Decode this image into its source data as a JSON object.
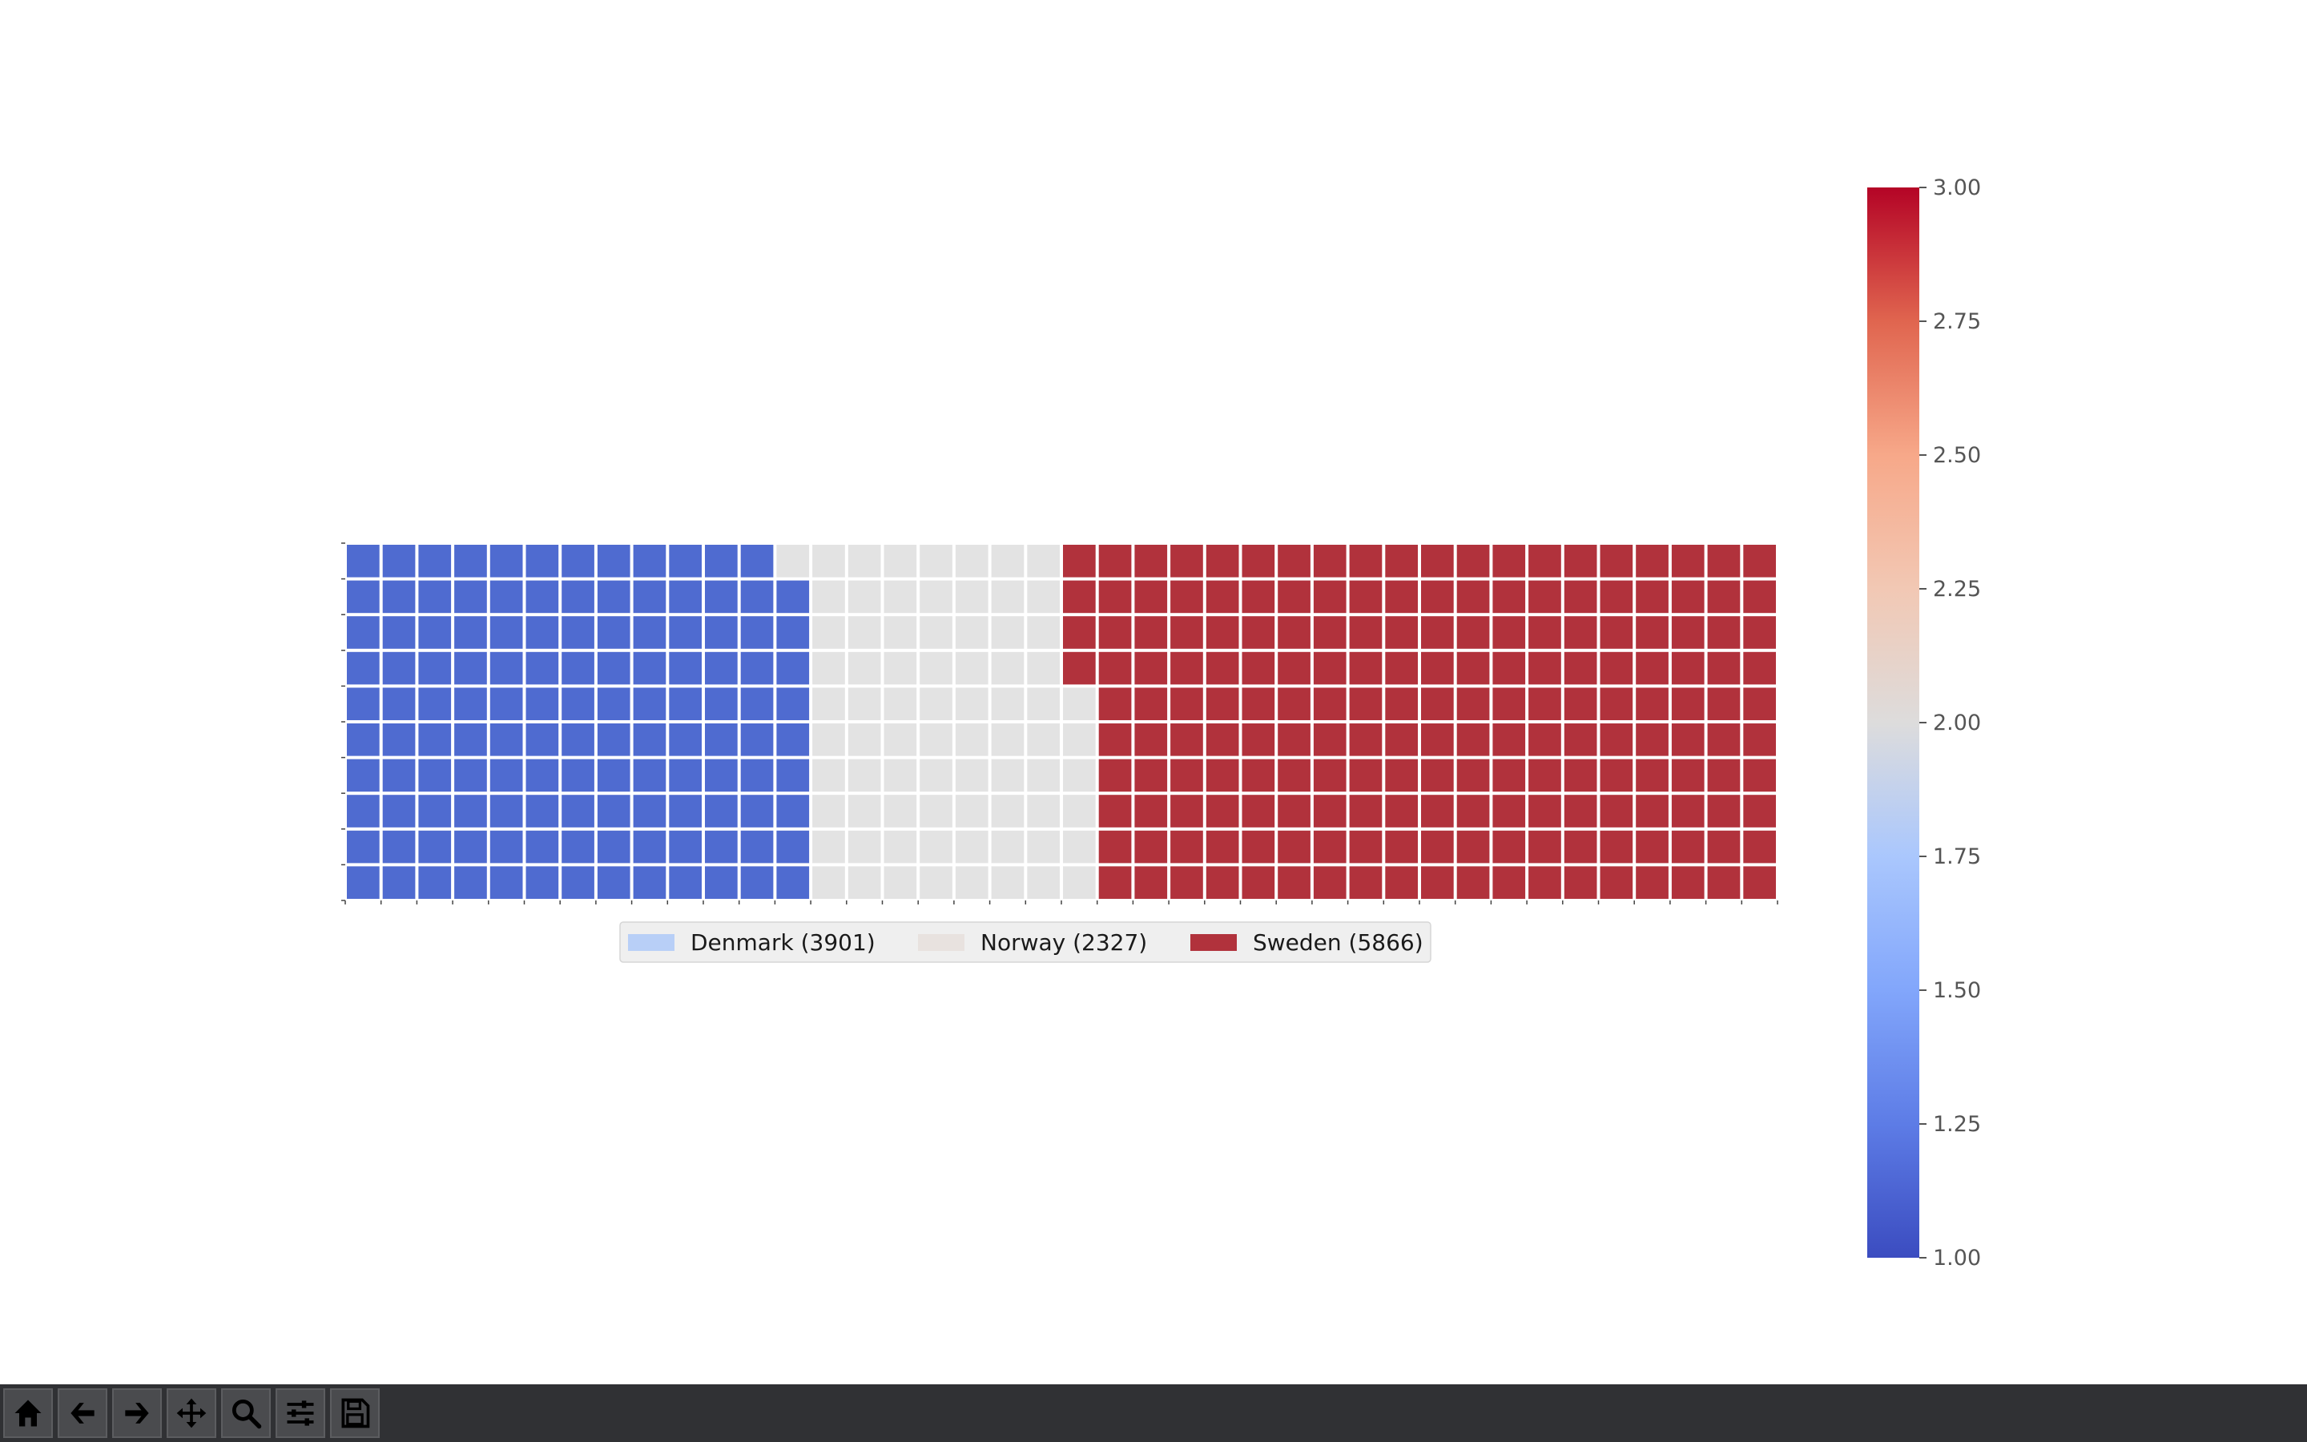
{
  "chart_data": {
    "type": "waffle",
    "title": "",
    "rows": 10,
    "columns": 40,
    "categories": [
      {
        "name": "Denmark",
        "label": "Denmark (3901)",
        "value": 3901,
        "blocks": 129,
        "color": "#4f6bd0",
        "legend_color": "#b8cff7"
      },
      {
        "name": "Norway",
        "label": "Norway (2327)",
        "value": 2327,
        "blocks": 77,
        "color": "#e3e3e3",
        "legend_color": "#e8e2df"
      },
      {
        "name": "Sweden",
        "label": "Sweden (5866)",
        "value": 5866,
        "blocks": 194,
        "color": "#b1323c",
        "legend_color": "#b1323c"
      }
    ],
    "fill_order": "column-major, bottom row first",
    "legend_placement": "below plot, 3 columns",
    "colorbar": {
      "colormap": "coolwarm",
      "range": [
        1.0,
        3.0
      ],
      "ticks": [
        "1.00",
        "1.25",
        "1.50",
        "1.75",
        "2.00",
        "2.25",
        "2.50",
        "2.75",
        "3.00"
      ]
    }
  },
  "toolbar": {
    "buttons": [
      {
        "name": "home-button",
        "icon": "home-icon"
      },
      {
        "name": "back-button",
        "icon": "arrow-left-icon"
      },
      {
        "name": "forward-button",
        "icon": "arrow-right-icon"
      },
      {
        "name": "pan-button",
        "icon": "move-icon"
      },
      {
        "name": "zoom-button",
        "icon": "magnifier-icon"
      },
      {
        "name": "configure-subplots-button",
        "icon": "sliders-icon"
      },
      {
        "name": "save-button",
        "icon": "floppy-disk-icon"
      }
    ]
  }
}
